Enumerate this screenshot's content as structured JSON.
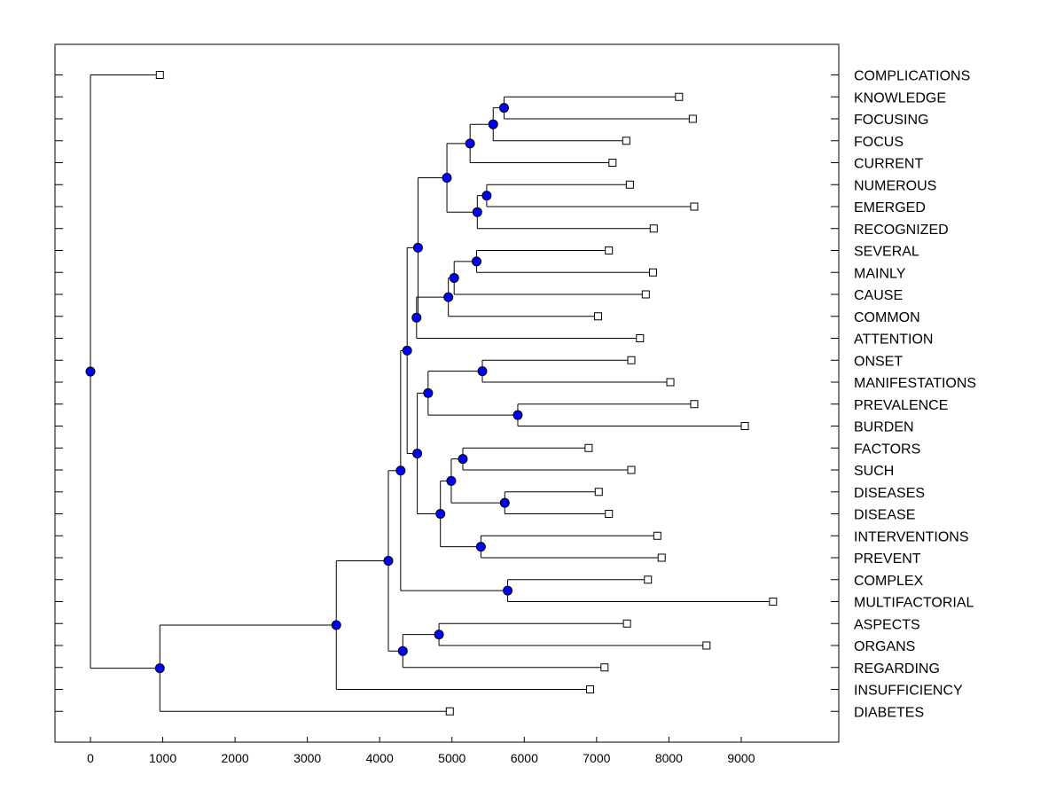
{
  "chart_data": {
    "type": "dendrogram",
    "x_ticks": [
      0,
      1000,
      2000,
      3000,
      4000,
      5000,
      6000,
      7000,
      8000,
      9000
    ],
    "xlim": [
      -500,
      10300
    ],
    "colors": {
      "node": "#0000ff",
      "leaf": "#ffffff",
      "line": "#000000"
    },
    "leaves": [
      {
        "label": "COMPLICATIONS",
        "value": 960
      },
      {
        "label": "KNOWLEDGE",
        "value": 8140
      },
      {
        "label": "FOCUSING",
        "value": 8330
      },
      {
        "label": "FOCUS",
        "value": 7410
      },
      {
        "label": "CURRENT",
        "value": 7220
      },
      {
        "label": "NUMEROUS",
        "value": 7460
      },
      {
        "label": "EMERGED",
        "value": 8350
      },
      {
        "label": "RECOGNIZED",
        "value": 7790
      },
      {
        "label": "SEVERAL",
        "value": 7170
      },
      {
        "label": "MAINLY",
        "value": 7780
      },
      {
        "label": "CAUSE",
        "value": 7680
      },
      {
        "label": "COMMON",
        "value": 7020
      },
      {
        "label": "ATTENTION",
        "value": 7600
      },
      {
        "label": "ONSET",
        "value": 7480
      },
      {
        "label": "MANIFESTATIONS",
        "value": 8020
      },
      {
        "label": "PREVALENCE",
        "value": 8350
      },
      {
        "label": "BURDEN",
        "value": 9050
      },
      {
        "label": "FACTORS",
        "value": 6890
      },
      {
        "label": "SUCH",
        "value": 7480
      },
      {
        "label": "DISEASES",
        "value": 7030
      },
      {
        "label": "DISEASE",
        "value": 7170
      },
      {
        "label": "INTERVENTIONS",
        "value": 7840
      },
      {
        "label": "PREVENT",
        "value": 7900
      },
      {
        "label": "COMPLEX",
        "value": 7710
      },
      {
        "label": "MULTIFACTORIAL",
        "value": 9440
      },
      {
        "label": "ASPECTS",
        "value": 7420
      },
      {
        "label": "ORGANS",
        "value": 8520
      },
      {
        "label": "REGARDING",
        "value": 7110
      },
      {
        "label": "INSUFFICIENCY",
        "value": 6910
      },
      {
        "label": "DIABETES",
        "value": 4970
      }
    ],
    "nodes": [
      {
        "id": "n1",
        "value": 5720,
        "children": [
          "L1",
          "L2"
        ]
      },
      {
        "id": "n2",
        "value": 5570,
        "children": [
          "n1",
          "L3"
        ]
      },
      {
        "id": "n3",
        "value": 5250,
        "children": [
          "n2",
          "L4"
        ]
      },
      {
        "id": "n4",
        "value": 5480,
        "children": [
          "L5",
          "L6"
        ]
      },
      {
        "id": "n5",
        "value": 5350,
        "children": [
          "n4",
          "L7"
        ]
      },
      {
        "id": "n6",
        "value": 4930,
        "children": [
          "n3",
          "n5"
        ]
      },
      {
        "id": "n7",
        "value": 5340,
        "children": [
          "L8",
          "L9"
        ]
      },
      {
        "id": "n8",
        "value": 5030,
        "children": [
          "n7",
          "L10"
        ]
      },
      {
        "id": "n9",
        "value": 4950,
        "children": [
          "n8",
          "L11"
        ]
      },
      {
        "id": "n10",
        "value": 4510,
        "children": [
          "n9",
          "L12"
        ]
      },
      {
        "id": "n11",
        "value": 4530,
        "children": [
          "n6",
          "n10"
        ]
      },
      {
        "id": "n12",
        "value": 5420,
        "children": [
          "L13",
          "L14"
        ]
      },
      {
        "id": "n13",
        "value": 5910,
        "children": [
          "L15",
          "L16"
        ]
      },
      {
        "id": "n14",
        "value": 4670,
        "children": [
          "n12",
          "n13"
        ]
      },
      {
        "id": "n15",
        "value": 5150,
        "children": [
          "L17",
          "L18"
        ]
      },
      {
        "id": "n16",
        "value": 5730,
        "children": [
          "L19",
          "L20"
        ]
      },
      {
        "id": "n17",
        "value": 4990,
        "children": [
          "n15",
          "n16"
        ]
      },
      {
        "id": "n18",
        "value": 5400,
        "children": [
          "L21",
          "L22"
        ]
      },
      {
        "id": "n19",
        "value": 4840,
        "children": [
          "n17",
          "n18"
        ]
      },
      {
        "id": "n20",
        "value": 4520,
        "children": [
          "n14",
          "n19"
        ]
      },
      {
        "id": "n21",
        "value": 4380,
        "children": [
          "n11",
          "n20"
        ]
      },
      {
        "id": "n22",
        "value": 5770,
        "children": [
          "L23",
          "L24"
        ]
      },
      {
        "id": "n23",
        "value": 4290,
        "children": [
          "n21",
          "n22"
        ]
      },
      {
        "id": "n24",
        "value": 4820,
        "children": [
          "L25",
          "L26"
        ]
      },
      {
        "id": "n25",
        "value": 4320,
        "children": [
          "n24",
          "L27"
        ]
      },
      {
        "id": "n26",
        "value": 4120,
        "children": [
          "n23",
          "n25"
        ]
      },
      {
        "id": "n27",
        "value": 3400,
        "children": [
          "n26",
          "L28"
        ]
      },
      {
        "id": "n28",
        "value": 960,
        "children": [
          "n27",
          "L29"
        ]
      },
      {
        "id": "n29",
        "value": 0,
        "children": [
          "L0",
          "n28"
        ]
      }
    ],
    "root": "n29"
  }
}
